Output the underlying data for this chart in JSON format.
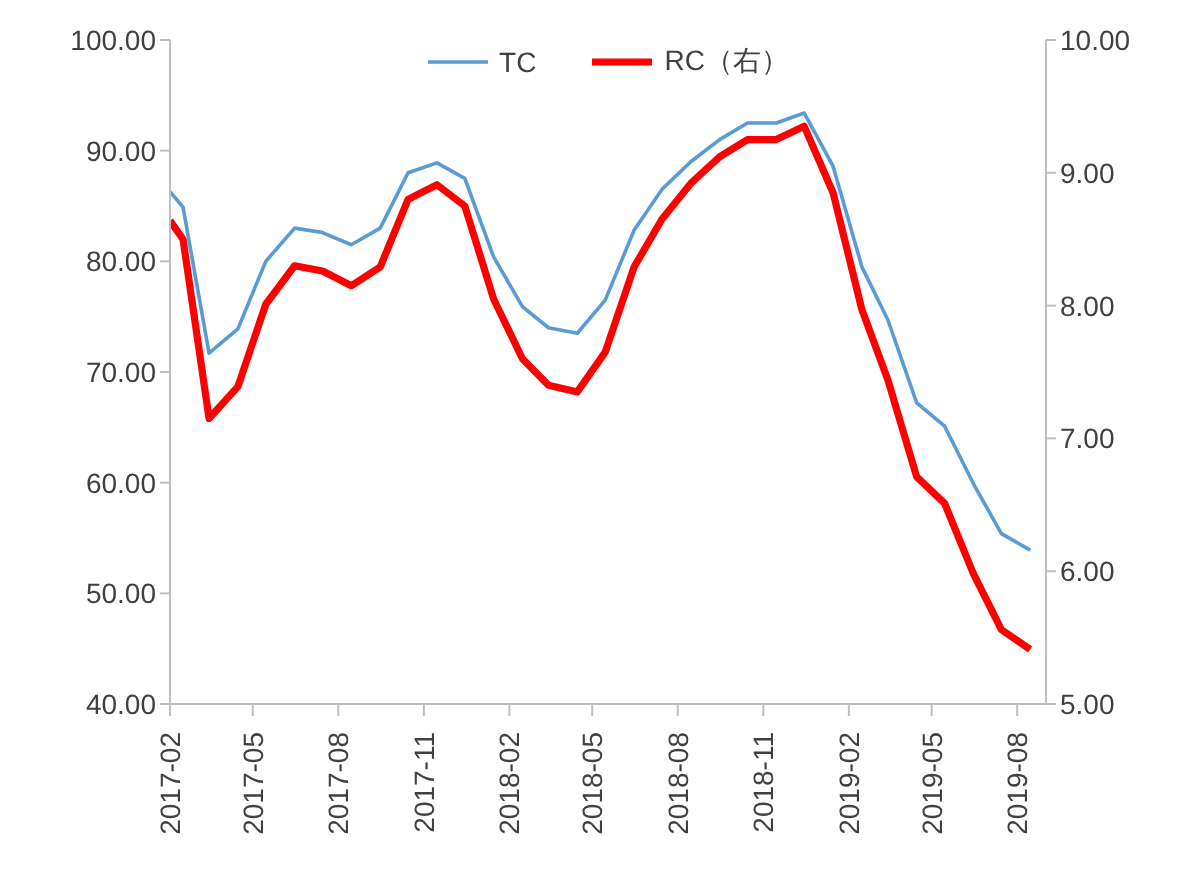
{
  "chart_data": {
    "type": "line",
    "x": [
      "2017-02-01",
      "2017-02-15",
      "2017-03-15",
      "2017-04-15",
      "2017-05-15",
      "2017-06-15",
      "2017-07-15",
      "2017-08-15",
      "2017-09-15",
      "2017-10-15",
      "2017-11-15",
      "2017-12-15",
      "2018-01-15",
      "2018-02-15",
      "2018-03-15",
      "2018-04-15",
      "2018-05-15",
      "2018-06-15",
      "2018-07-15",
      "2018-08-15",
      "2018-09-15",
      "2018-10-15",
      "2018-11-15",
      "2018-12-15",
      "2019-01-15",
      "2019-02-15",
      "2019-03-15",
      "2019-04-15",
      "2019-05-15",
      "2019-06-15",
      "2019-07-15",
      "2019-08-15"
    ],
    "series": [
      {
        "name": "TC",
        "color": "#5b9bd5",
        "values": [
          86.3,
          84.9,
          71.7,
          73.9,
          80.0,
          83.0,
          82.6,
          81.5,
          83.0,
          88.0,
          88.9,
          87.5,
          80.4,
          75.9,
          74.0,
          73.5,
          76.5,
          82.8,
          86.5,
          89.0,
          91.0,
          92.5,
          92.5,
          93.4,
          88.6,
          79.5,
          74.7,
          67.2,
          65.1,
          59.9,
          55.4,
          53.9
        ]
      },
      {
        "name": "RC（右）",
        "color": "#ff0000",
        "axis": "y2",
        "values": [
          8.64,
          8.5,
          7.15,
          7.39,
          8.01,
          8.3,
          8.26,
          8.15,
          8.29,
          8.8,
          8.91,
          8.75,
          8.05,
          7.6,
          7.4,
          7.35,
          7.65,
          8.29,
          8.65,
          8.92,
          9.12,
          9.25,
          9.25,
          9.35,
          8.85,
          7.97,
          7.44,
          6.71,
          6.51,
          5.98,
          5.56,
          5.41
        ]
      }
    ],
    "xlim": [
      "2017-02",
      "2019-09"
    ],
    "xticks": [
      "2017-02",
      "2017-05",
      "2017-08",
      "2017-11",
      "2018-02",
      "2018-05",
      "2018-08",
      "2018-11",
      "2019-02",
      "2019-05",
      "2019-08"
    ],
    "ylim": [
      40,
      100
    ],
    "yticks": [
      {
        "value": 40,
        "label": "40.00"
      },
      {
        "value": 50,
        "label": "50.00"
      },
      {
        "value": 60,
        "label": "60.00"
      },
      {
        "value": 70,
        "label": "70.00"
      },
      {
        "value": 80,
        "label": "80.00"
      },
      {
        "value": 90,
        "label": "90.00"
      },
      {
        "value": 100,
        "label": "100.00"
      }
    ],
    "y2lim": [
      5,
      10
    ],
    "y2ticks": [
      {
        "value": 5,
        "label": "5.00"
      },
      {
        "value": 6,
        "label": "6.00"
      },
      {
        "value": 7,
        "label": "7.00"
      },
      {
        "value": 8,
        "label": "8.00"
      },
      {
        "value": 9,
        "label": "9.00"
      },
      {
        "value": 10,
        "label": "10.00"
      }
    ],
    "grid": false,
    "legend": "top",
    "marker": "none"
  }
}
